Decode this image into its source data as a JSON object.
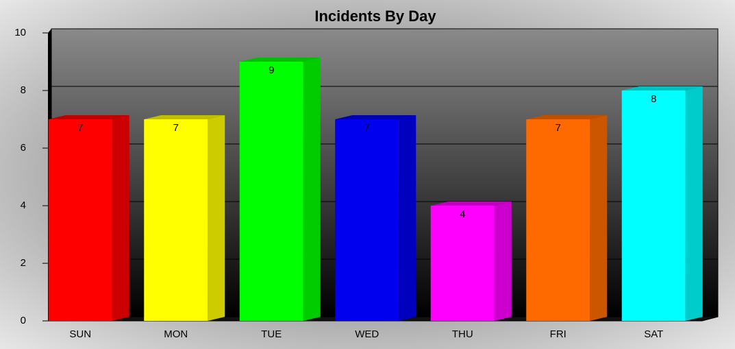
{
  "chart_data": {
    "type": "bar",
    "title": "Incidents By Day",
    "categories": [
      "SUN",
      "MON",
      "TUE",
      "WED",
      "THU",
      "FRI",
      "SAT"
    ],
    "values": [
      7,
      7,
      9,
      7,
      4,
      7,
      8
    ],
    "colors": [
      "#ff0000",
      "#ffff00",
      "#00ff00",
      "#0000ee",
      "#ff00ff",
      "#ff6a00",
      "#00ffff"
    ],
    "ylim": [
      0,
      10
    ],
    "yticks": [
      0,
      2,
      4,
      6,
      8,
      10
    ],
    "grid": true
  }
}
